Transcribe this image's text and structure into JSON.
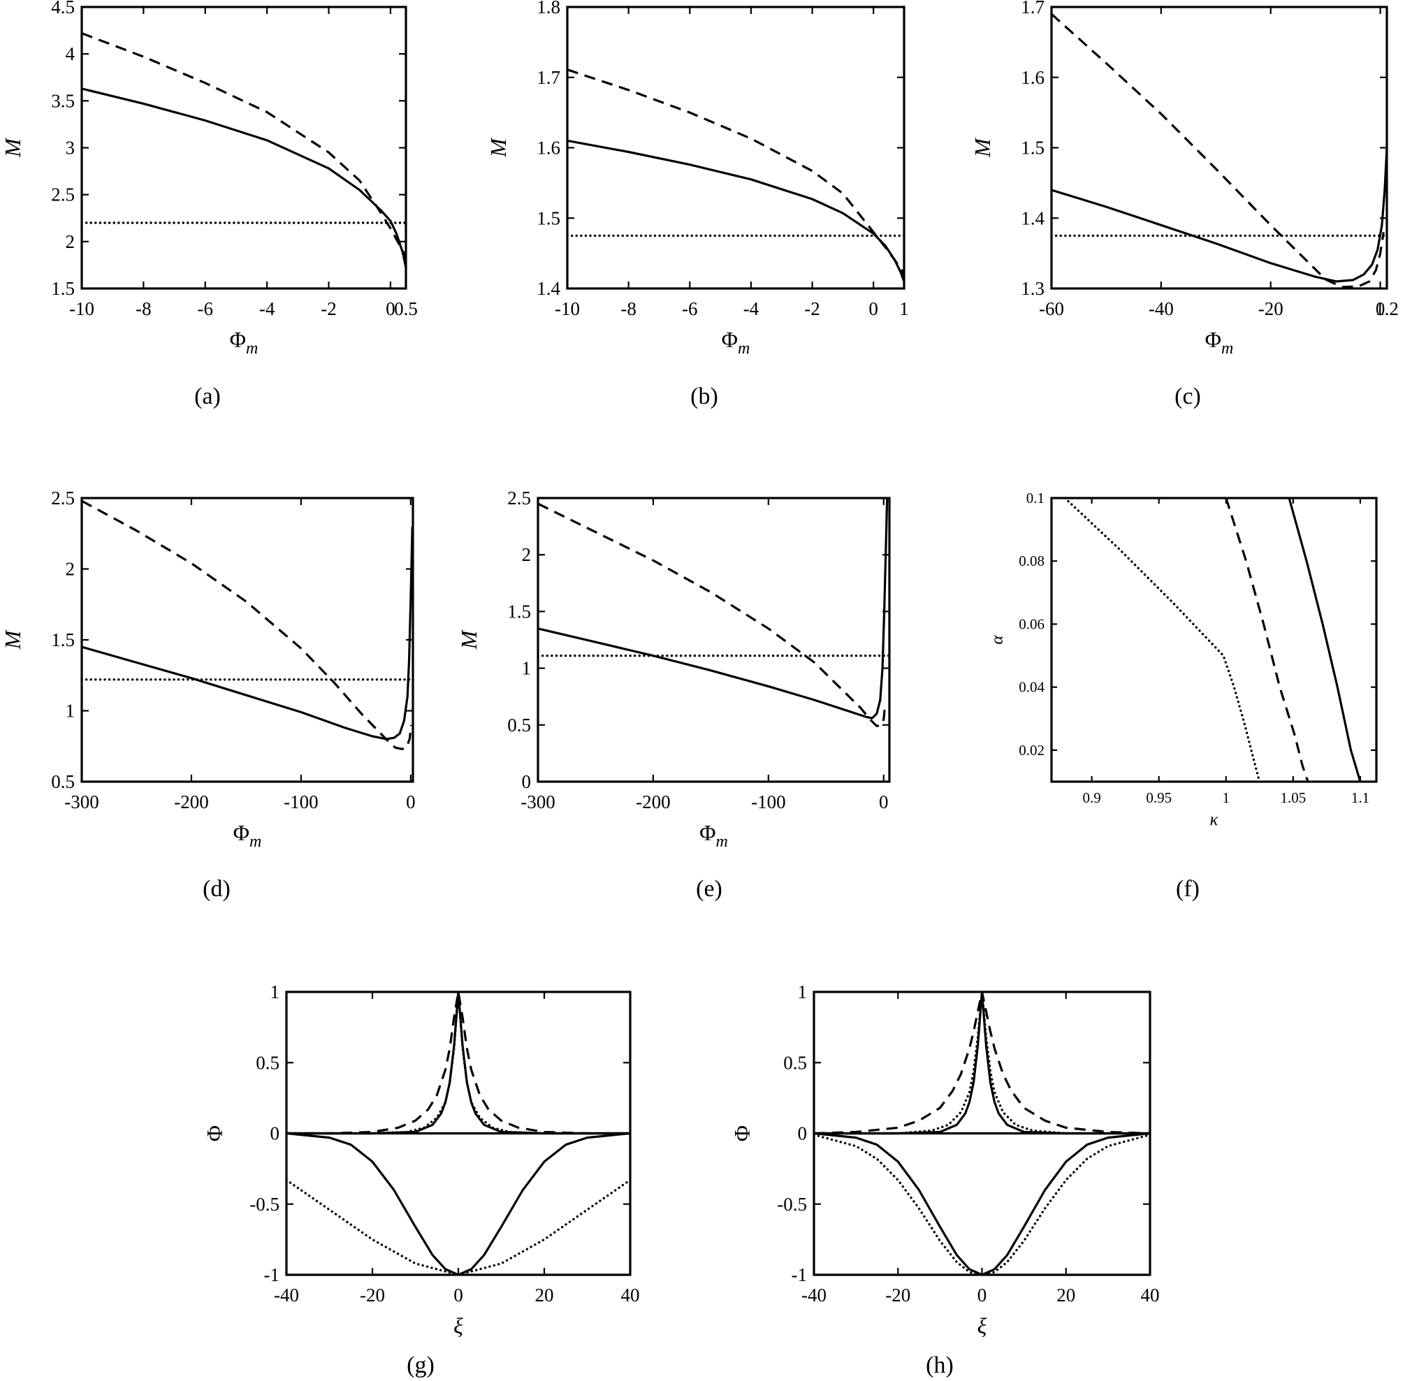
{
  "chart_data": [
    {
      "type": "line",
      "panel_label": "(a)",
      "xlabel_main": "Φ",
      "xlabel_sub": "m",
      "ylabel": "M",
      "xlim": [
        -10,
        0.5
      ],
      "ylim": [
        1.5,
        4.5
      ],
      "xticks": [
        -10,
        -8,
        -6,
        -4,
        -2,
        0,
        0.5
      ],
      "xticklabels": [
        "-10",
        "-8",
        "-6",
        "-4",
        "-2",
        "0",
        "0.5"
      ],
      "yticks": [
        1.5,
        2,
        2.5,
        3,
        3.5,
        4,
        4.5
      ],
      "yticklabels": [
        "1.5",
        "2",
        "2.5",
        "3",
        "3.5",
        "4",
        "4.5"
      ],
      "series": [
        {
          "style": "solid",
          "x": [
            -10,
            -8,
            -6,
            -4,
            -2,
            -1,
            -0.3,
            0,
            0.2,
            0.4,
            0.5
          ],
          "y": [
            3.63,
            3.47,
            3.29,
            3.08,
            2.78,
            2.55,
            2.33,
            2.22,
            2.08,
            1.88,
            1.72
          ]
        },
        {
          "style": "dashed",
          "x": [
            -10,
            -8,
            -6,
            -4,
            -2,
            -1,
            -0.3,
            0,
            0.2,
            0.4,
            0.5
          ],
          "y": [
            4.22,
            3.97,
            3.69,
            3.38,
            2.95,
            2.65,
            2.3,
            2.14,
            2.02,
            1.9,
            1.84
          ]
        },
        {
          "style": "dotted",
          "x": [
            -10,
            0.5
          ],
          "y": [
            2.2,
            2.2
          ]
        }
      ]
    },
    {
      "type": "line",
      "panel_label": "(b)",
      "xlabel_main": "Φ",
      "xlabel_sub": "m",
      "ylabel": "M",
      "xlim": [
        -10,
        1
      ],
      "ylim": [
        1.4,
        1.8
      ],
      "xticks": [
        -10,
        -8,
        -6,
        -4,
        -2,
        0,
        1
      ],
      "xticklabels": [
        "-10",
        "-8",
        "-6",
        "-4",
        "-2",
        "0",
        "1"
      ],
      "yticks": [
        1.4,
        1.5,
        1.6,
        1.7,
        1.8
      ],
      "yticklabels": [
        "1.4",
        "1.5",
        "1.6",
        "1.7",
        "1.8"
      ],
      "series": [
        {
          "style": "solid",
          "x": [
            -10,
            -8,
            -6,
            -4,
            -2,
            -1,
            0,
            0.4,
            0.7,
            0.9,
            1
          ],
          "y": [
            1.61,
            1.594,
            1.576,
            1.555,
            1.527,
            1.507,
            1.478,
            1.46,
            1.44,
            1.422,
            1.41
          ]
        },
        {
          "style": "dashed",
          "x": [
            -10,
            -8,
            -6,
            -4,
            -2,
            -1,
            0,
            0.4,
            0.7,
            0.9,
            1
          ],
          "y": [
            1.711,
            1.682,
            1.65,
            1.613,
            1.567,
            1.535,
            1.48,
            1.458,
            1.44,
            1.428,
            1.42
          ]
        },
        {
          "style": "dotted",
          "x": [
            -10,
            1
          ],
          "y": [
            1.475,
            1.475
          ]
        }
      ]
    },
    {
      "type": "line",
      "panel_label": "(c)",
      "xlabel_main": "Φ",
      "xlabel_sub": "m",
      "ylabel": "M",
      "xlim": [
        -60,
        1.2
      ],
      "ylim": [
        1.3,
        1.7
      ],
      "xticks": [
        -60,
        -40,
        -20,
        0,
        1.2
      ],
      "xticklabels": [
        "-60",
        "-40",
        "-20",
        "0",
        "1.2"
      ],
      "yticks": [
        1.3,
        1.4,
        1.5,
        1.6,
        1.7
      ],
      "yticklabels": [
        "1.3",
        "1.4",
        "1.5",
        "1.6",
        "1.7"
      ],
      "series": [
        {
          "style": "solid",
          "x": [
            -60,
            -50,
            -40,
            -30,
            -20,
            -12,
            -8,
            -5,
            -3,
            -1.5,
            -0.5,
            0.3,
            0.8,
            1.2
          ],
          "y": [
            1.44,
            1.416,
            1.39,
            1.364,
            1.336,
            1.317,
            1.31,
            1.312,
            1.32,
            1.334,
            1.355,
            1.39,
            1.44,
            1.5
          ]
        },
        {
          "style": "dashed",
          "x": [
            -60,
            -50,
            -40,
            -30,
            -20,
            -10,
            -7,
            -4,
            -2,
            -0.8,
            0,
            0.6
          ],
          "y": [
            1.69,
            1.62,
            1.548,
            1.47,
            1.39,
            1.313,
            1.302,
            1.303,
            1.31,
            1.326,
            1.35,
            1.38
          ]
        },
        {
          "style": "dotted",
          "x": [
            -60,
            1.2
          ],
          "y": [
            1.375,
            1.375
          ]
        }
      ]
    },
    {
      "type": "line",
      "panel_label": "(d)",
      "xlabel_main": "Φ",
      "xlabel_sub": "m",
      "ylabel": "M",
      "xlim": [
        -300,
        2
      ],
      "ylim": [
        0.5,
        2.5
      ],
      "xticks": [
        -300,
        -200,
        -100,
        0
      ],
      "xticklabels": [
        "-300",
        "-200",
        "-100",
        "0"
      ],
      "yticks": [
        0.5,
        1,
        1.5,
        2,
        2.5
      ],
      "yticklabels": [
        "0.5",
        "1",
        "1.5",
        "2",
        "2.5"
      ],
      "series": [
        {
          "style": "solid",
          "x": [
            -300,
            -250,
            -200,
            -150,
            -100,
            -60,
            -35,
            -22,
            -15,
            -10,
            -6,
            -3,
            -1.5,
            0,
            1.5
          ],
          "y": [
            1.45,
            1.34,
            1.23,
            1.11,
            0.99,
            0.88,
            0.82,
            0.8,
            0.81,
            0.84,
            0.93,
            1.1,
            1.35,
            1.8,
            2.3
          ]
        },
        {
          "style": "dashed",
          "x": [
            -300,
            -250,
            -200,
            -150,
            -100,
            -70,
            -45,
            -30,
            -20,
            -14,
            -8,
            -4,
            -1,
            0.5
          ],
          "y": [
            2.48,
            2.27,
            2.04,
            1.77,
            1.44,
            1.2,
            0.98,
            0.86,
            0.78,
            0.74,
            0.73,
            0.74,
            0.8,
            0.9
          ]
        },
        {
          "style": "dotted",
          "x": [
            -300,
            2
          ],
          "y": [
            1.22,
            1.22
          ]
        }
      ]
    },
    {
      "type": "line",
      "panel_label": "(e)",
      "xlabel_main": "Φ",
      "xlabel_sub": "m",
      "ylabel": "M",
      "xlim": [
        -300,
        5
      ],
      "ylim": [
        0,
        2.5
      ],
      "xticks": [
        -300,
        -200,
        -100,
        0
      ],
      "xticklabels": [
        "-300",
        "-200",
        "-100",
        "0"
      ],
      "yticks": [
        0,
        0.5,
        1,
        1.5,
        2,
        2.5
      ],
      "yticklabels": [
        "0",
        "0.5",
        "1",
        "1.5",
        "2",
        "2.5"
      ],
      "series": [
        {
          "style": "solid",
          "x": [
            -300,
            -250,
            -200,
            -150,
            -100,
            -60,
            -30,
            -15,
            -10,
            -6,
            -3,
            -1,
            0.5,
            2,
            3
          ],
          "y": [
            1.35,
            1.23,
            1.11,
            0.98,
            0.84,
            0.72,
            0.62,
            0.57,
            0.56,
            0.6,
            0.72,
            1.0,
            1.5,
            2.1,
            2.5
          ]
        },
        {
          "style": "dashed",
          "x": [
            -300,
            -250,
            -200,
            -150,
            -100,
            -60,
            -35,
            -20,
            -12,
            -6,
            -2,
            0,
            1
          ],
          "y": [
            2.45,
            2.2,
            1.95,
            1.67,
            1.35,
            1.05,
            0.8,
            0.65,
            0.55,
            0.49,
            0.5,
            0.55,
            0.65
          ]
        },
        {
          "style": "dotted",
          "x": [
            -300,
            5
          ],
          "y": [
            1.11,
            1.11
          ]
        }
      ]
    },
    {
      "type": "line",
      "panel_label": "(f)",
      "xlabel_main": "κ",
      "xlabel_sub": "",
      "ylabel": "α",
      "xlim": [
        0.87,
        1.112
      ],
      "ylim": [
        0.01,
        0.1
      ],
      "xticks": [
        0.9,
        0.95,
        1,
        1.05,
        1.1
      ],
      "xticklabels": [
        "0.9",
        "0.95",
        "1",
        "1.05",
        "1.1"
      ],
      "yticks": [
        0.02,
        0.04,
        0.06,
        0.08,
        0.1
      ],
      "yticklabels": [
        "0.02",
        "0.04",
        "0.06",
        "0.08",
        "0.1"
      ],
      "series": [
        {
          "style": "solid",
          "x": [
            1.047,
            1.06,
            1.072,
            1.083,
            1.093,
            1.1
          ],
          "y": [
            0.1,
            0.08,
            0.06,
            0.04,
            0.02,
            0.01
          ]
        },
        {
          "style": "dashed",
          "x": [
            1.0,
            1.015,
            1.028,
            1.04,
            1.051,
            1.057,
            1.061
          ],
          "y": [
            0.1,
            0.08,
            0.06,
            0.04,
            0.025,
            0.015,
            0.01
          ]
        },
        {
          "style": "dotted",
          "x": [
            0.88,
            0.92,
            0.96,
            0.998,
            1.006,
            1.014,
            1.02,
            1.025
          ],
          "y": [
            0.1,
            0.084,
            0.067,
            0.05,
            0.04,
            0.028,
            0.018,
            0.01
          ]
        }
      ]
    },
    {
      "type": "line",
      "panel_label": "(g)",
      "xlabel_main": "ξ",
      "xlabel_sub": "",
      "ylabel": "Φ",
      "xlim": [
        -40,
        40
      ],
      "ylim": [
        -1,
        1
      ],
      "xticks": [
        -40,
        -20,
        0,
        20,
        40
      ],
      "xticklabels": [
        "-40",
        "-20",
        "0",
        "20",
        "40"
      ],
      "yticks": [
        -1,
        -0.5,
        0,
        0.5,
        1
      ],
      "yticklabels": [
        "-1",
        "-0.5",
        "0",
        "0.5",
        "1"
      ],
      "series": [
        {
          "style": "solid",
          "x": [
            -40,
            -20,
            -10,
            -6,
            -4,
            -3,
            -2,
            -1,
            0,
            1,
            2,
            3,
            4,
            6,
            10,
            20,
            40
          ],
          "y": [
            0,
            0,
            0.01,
            0.06,
            0.14,
            0.22,
            0.36,
            0.62,
            1,
            0.62,
            0.36,
            0.22,
            0.14,
            0.06,
            0.01,
            0,
            0
          ]
        },
        {
          "style": "dashed",
          "x": [
            -40,
            -30,
            -20,
            -14,
            -10,
            -7,
            -5,
            -3,
            -2,
            -1,
            0,
            1,
            2,
            3,
            5,
            7,
            10,
            14,
            20,
            30,
            40
          ],
          "y": [
            0,
            0,
            0.01,
            0.04,
            0.09,
            0.17,
            0.27,
            0.45,
            0.6,
            0.82,
            1,
            0.82,
            0.6,
            0.45,
            0.27,
            0.17,
            0.09,
            0.04,
            0.01,
            0,
            0
          ]
        },
        {
          "style": "dotted",
          "x": [
            -40,
            -20,
            -12,
            -8,
            -5,
            -3,
            -2,
            -1,
            0,
            1,
            2,
            3,
            5,
            8,
            12,
            20,
            40
          ],
          "y": [
            0,
            0,
            0.01,
            0.04,
            0.11,
            0.22,
            0.36,
            0.6,
            1,
            0.6,
            0.36,
            0.22,
            0.11,
            0.04,
            0.01,
            0,
            0
          ]
        },
        {
          "style": "solid",
          "x": [
            -40,
            -30,
            -25,
            -20,
            -15,
            -10,
            -6,
            -3,
            0,
            3,
            6,
            10,
            15,
            20,
            25,
            30,
            40
          ],
          "y": [
            0,
            -0.03,
            -0.08,
            -0.2,
            -0.4,
            -0.66,
            -0.86,
            -0.96,
            -1,
            -0.96,
            -0.86,
            -0.66,
            -0.4,
            -0.2,
            -0.08,
            -0.03,
            0
          ]
        },
        {
          "style": "dotted",
          "x": [
            -40,
            -30,
            -20,
            -10,
            0,
            10,
            20,
            30,
            40
          ],
          "y": [
            -0.33,
            -0.54,
            -0.75,
            -0.92,
            -1,
            -0.92,
            -0.75,
            -0.54,
            -0.33
          ]
        },
        {
          "style": "solid",
          "x": [
            -40,
            40
          ],
          "y": [
            0,
            0
          ]
        }
      ]
    },
    {
      "type": "line",
      "panel_label": "(h)",
      "xlabel_main": "ξ",
      "xlabel_sub": "",
      "ylabel": "Φ",
      "xlim": [
        -40,
        40
      ],
      "ylim": [
        -1,
        1
      ],
      "xticks": [
        -40,
        -20,
        0,
        20,
        40
      ],
      "xticklabels": [
        "-40",
        "-20",
        "0",
        "20",
        "40"
      ],
      "yticks": [
        -1,
        -0.5,
        0,
        0.5,
        1
      ],
      "yticklabels": [
        "-1",
        "-0.5",
        "0",
        "0.5",
        "1"
      ],
      "series": [
        {
          "style": "solid",
          "x": [
            -40,
            -20,
            -10,
            -6,
            -4,
            -3,
            -2,
            -1,
            0,
            1,
            2,
            3,
            4,
            6,
            10,
            20,
            40
          ],
          "y": [
            0,
            0,
            0.01,
            0.06,
            0.14,
            0.22,
            0.36,
            0.62,
            1,
            0.62,
            0.36,
            0.22,
            0.14,
            0.06,
            0.01,
            0,
            0
          ]
        },
        {
          "style": "dashed",
          "x": [
            -40,
            -30,
            -20,
            -15,
            -10,
            -7,
            -5,
            -3,
            -2,
            -1,
            0,
            1,
            2,
            3,
            5,
            7,
            10,
            15,
            20,
            30,
            40
          ],
          "y": [
            0,
            0.01,
            0.04,
            0.09,
            0.18,
            0.3,
            0.42,
            0.6,
            0.72,
            0.86,
            1,
            0.86,
            0.72,
            0.6,
            0.42,
            0.3,
            0.18,
            0.09,
            0.04,
            0.01,
            0
          ]
        },
        {
          "style": "dotted",
          "x": [
            -40,
            -20,
            -12,
            -8,
            -5,
            -3,
            -2,
            -1,
            0,
            1,
            2,
            3,
            5,
            8,
            12,
            20,
            40
          ],
          "y": [
            0,
            0,
            0.02,
            0.06,
            0.15,
            0.29,
            0.44,
            0.68,
            1,
            0.68,
            0.44,
            0.29,
            0.15,
            0.06,
            0.02,
            0,
            0
          ]
        },
        {
          "style": "solid",
          "x": [
            -40,
            -30,
            -25,
            -20,
            -15,
            -10,
            -6,
            -3,
            0,
            3,
            6,
            10,
            15,
            20,
            25,
            30,
            40
          ],
          "y": [
            0,
            -0.03,
            -0.08,
            -0.2,
            -0.4,
            -0.66,
            -0.86,
            -0.96,
            -1,
            -0.96,
            -0.86,
            -0.66,
            -0.4,
            -0.2,
            -0.08,
            -0.03,
            0
          ]
        },
        {
          "style": "dotted",
          "x": [
            -40,
            -30,
            -25,
            -20,
            -15,
            -10,
            -6,
            -3,
            0,
            3,
            6,
            10,
            15,
            20,
            25,
            30,
            40
          ],
          "y": [
            -0.01,
            -0.09,
            -0.18,
            -0.33,
            -0.53,
            -0.76,
            -0.91,
            -0.98,
            -1,
            -0.98,
            -0.91,
            -0.76,
            -0.53,
            -0.33,
            -0.18,
            -0.09,
            -0.01
          ]
        },
        {
          "style": "solid",
          "x": [
            -40,
            40
          ],
          "y": [
            0,
            0
          ]
        }
      ]
    }
  ]
}
